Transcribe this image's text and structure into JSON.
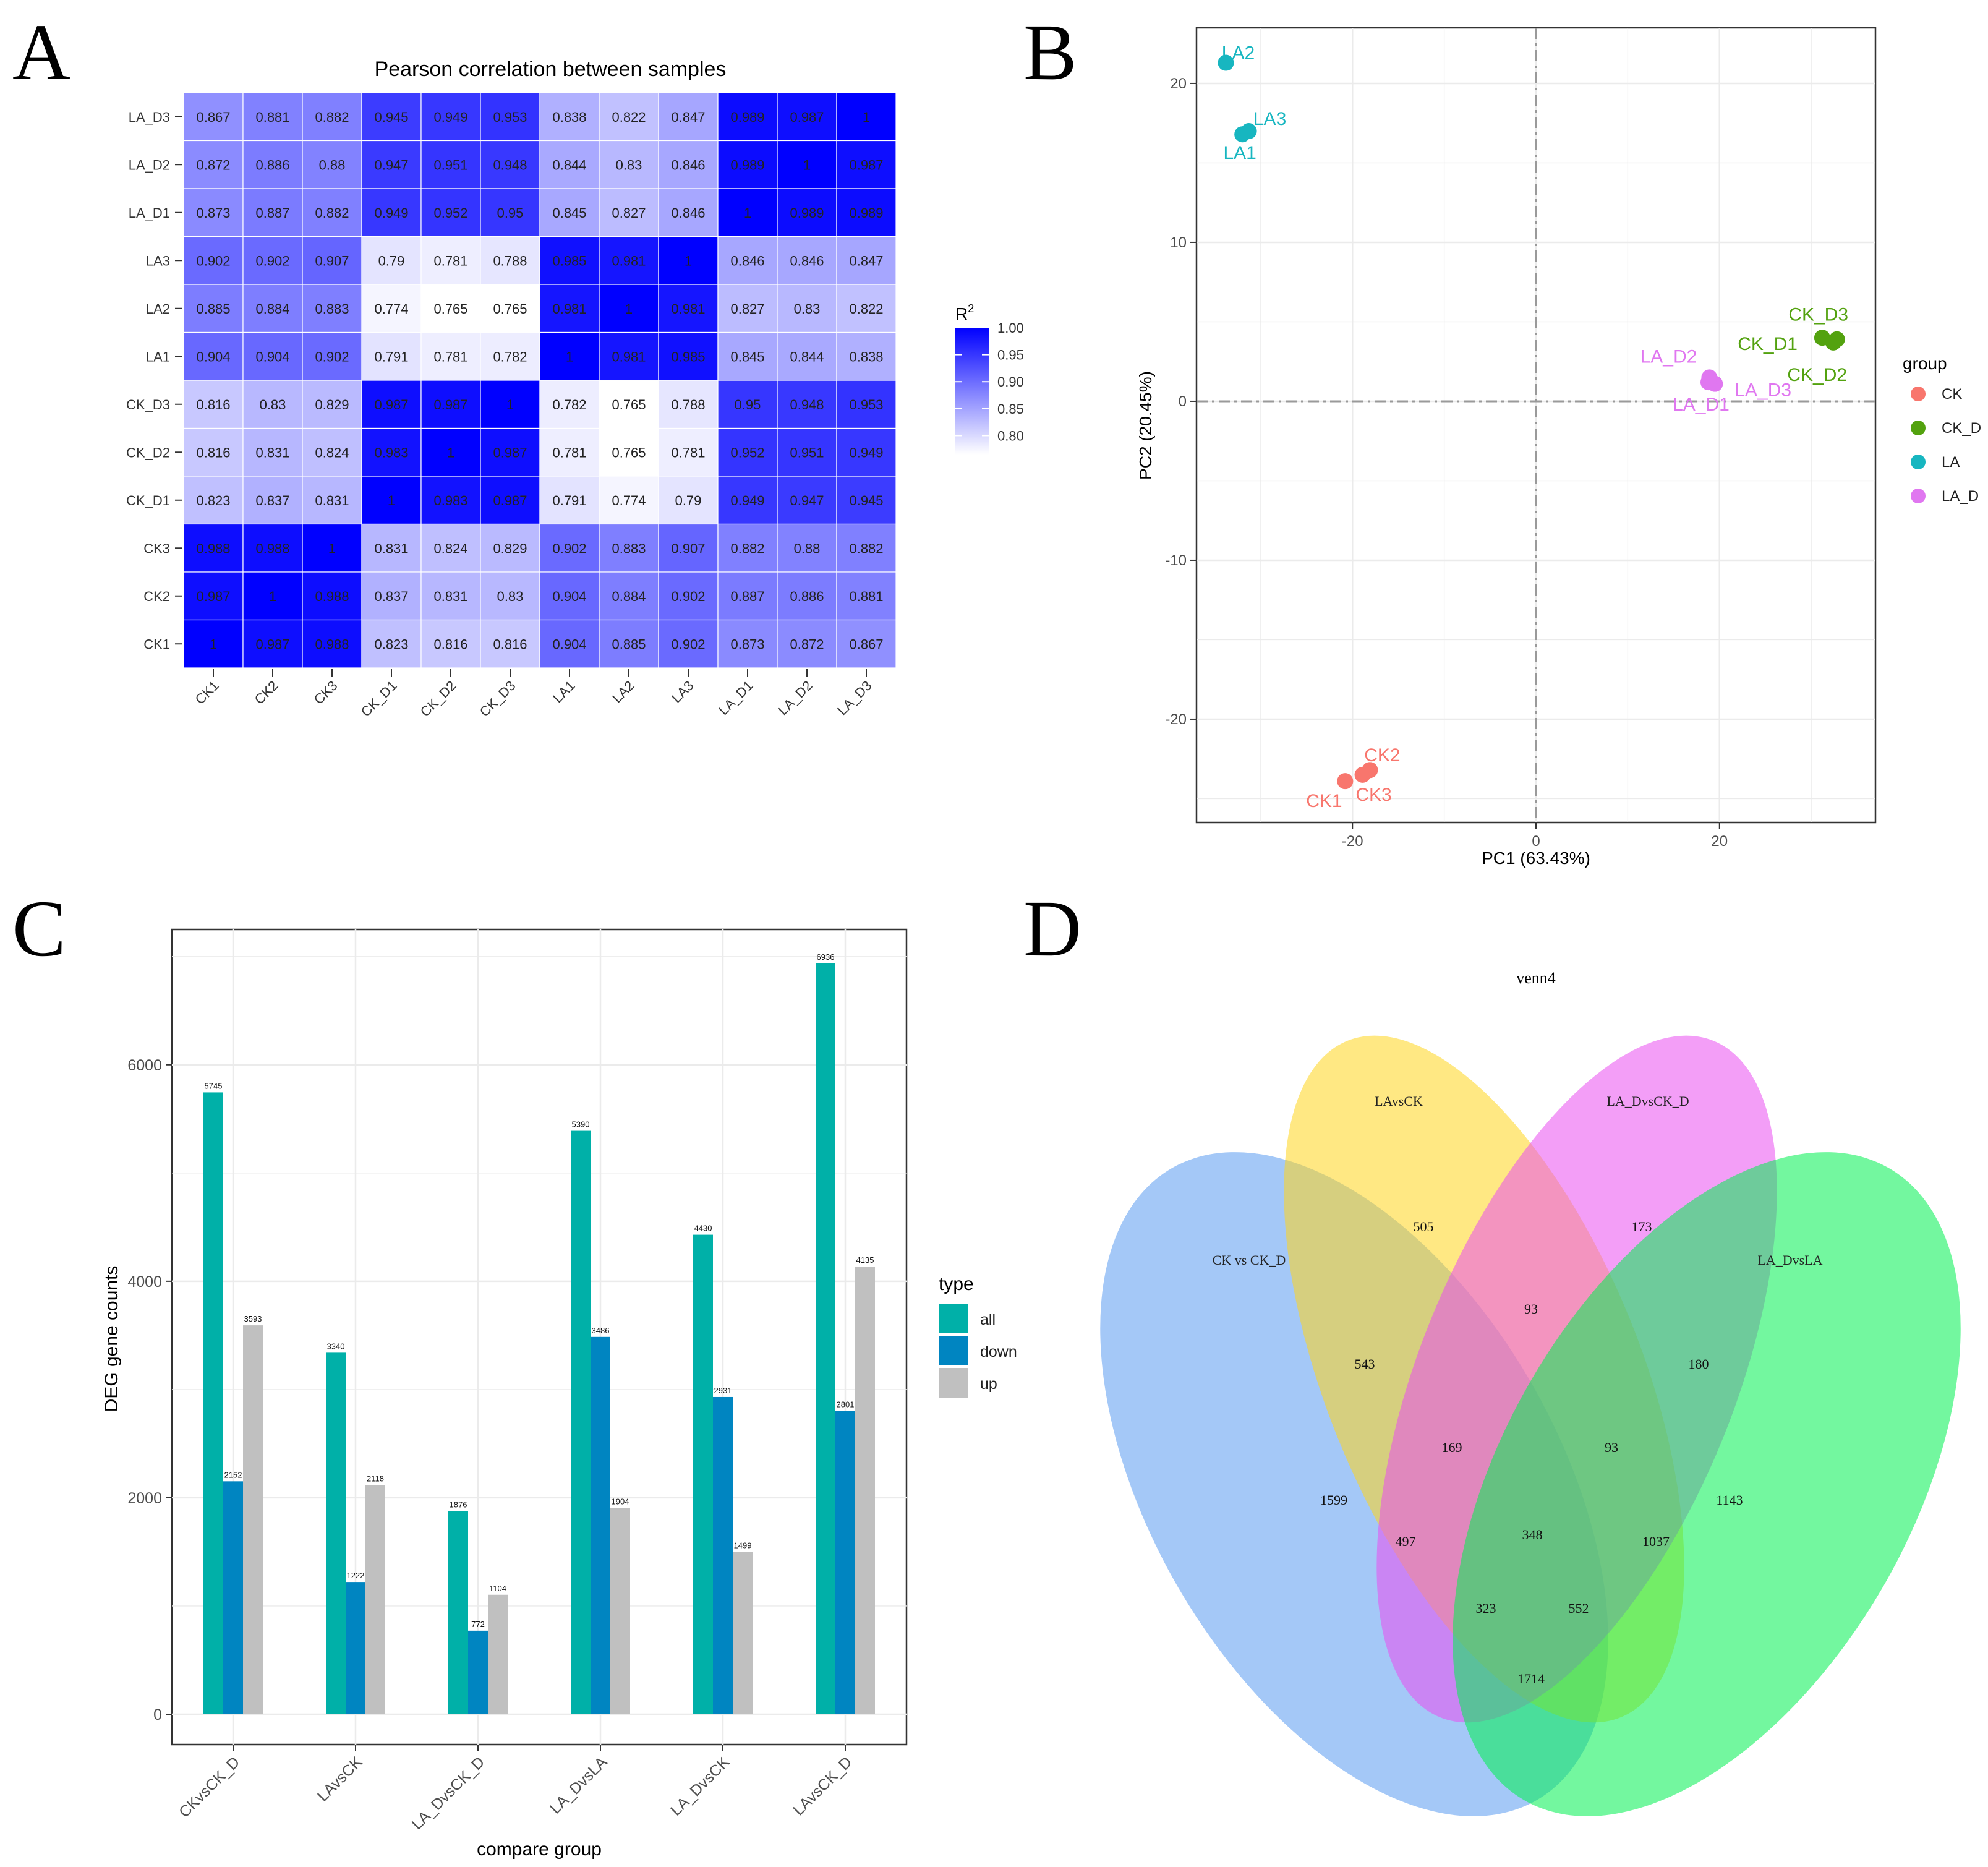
{
  "panel_letters": [
    "A",
    "B",
    "C",
    "D"
  ],
  "chart_data": [
    {
      "panel": "A",
      "type": "heatmap",
      "title": "Pearson correlation between samples",
      "x_categories": [
        "CK1",
        "CK2",
        "CK3",
        "CK_D1",
        "CK_D2",
        "CK_D3",
        "LA1",
        "LA2",
        "LA3",
        "LA_D1",
        "LA_D2",
        "LA_D3"
      ],
      "y_categories_top_to_bottom": [
        "LA_D3",
        "LA_D2",
        "LA_D1",
        "LA3",
        "LA2",
        "LA1",
        "CK_D3",
        "CK_D2",
        "CK_D1",
        "CK3",
        "CK2",
        "CK1"
      ],
      "values": [
        [
          "0.867",
          "0.881",
          "0.882",
          "0.945",
          "0.949",
          "0.953",
          "0.838",
          "0.822",
          "0.847",
          "0.989",
          "0.987",
          "1"
        ],
        [
          "0.872",
          "0.886",
          "0.88",
          "0.947",
          "0.951",
          "0.948",
          "0.844",
          "0.83",
          "0.846",
          "0.989",
          "1",
          "0.987"
        ],
        [
          "0.873",
          "0.887",
          "0.882",
          "0.949",
          "0.952",
          "0.95",
          "0.845",
          "0.827",
          "0.846",
          "1",
          "0.989",
          "0.989"
        ],
        [
          "0.902",
          "0.902",
          "0.907",
          "0.79",
          "0.781",
          "0.788",
          "0.985",
          "0.981",
          "1",
          "0.846",
          "0.846",
          "0.847"
        ],
        [
          "0.885",
          "0.884",
          "0.883",
          "0.774",
          "0.765",
          "0.765",
          "0.981",
          "1",
          "0.981",
          "0.827",
          "0.83",
          "0.822"
        ],
        [
          "0.904",
          "0.904",
          "0.902",
          "0.791",
          "0.781",
          "0.782",
          "1",
          "0.981",
          "0.985",
          "0.845",
          "0.844",
          "0.838"
        ],
        [
          "0.816",
          "0.83",
          "0.829",
          "0.987",
          "0.987",
          "1",
          "0.782",
          "0.765",
          "0.788",
          "0.95",
          "0.948",
          "0.953"
        ],
        [
          "0.816",
          "0.831",
          "0.824",
          "0.983",
          "1",
          "0.987",
          "0.781",
          "0.765",
          "0.781",
          "0.952",
          "0.951",
          "0.949"
        ],
        [
          "0.823",
          "0.837",
          "0.831",
          "1",
          "0.983",
          "0.987",
          "0.791",
          "0.774",
          "0.79",
          "0.949",
          "0.947",
          "0.945"
        ],
        [
          "0.988",
          "0.988",
          "1",
          "0.831",
          "0.824",
          "0.829",
          "0.902",
          "0.883",
          "0.907",
          "0.882",
          "0.88",
          "0.882"
        ],
        [
          "0.987",
          "1",
          "0.988",
          "0.837",
          "0.831",
          "0.83",
          "0.904",
          "0.884",
          "0.902",
          "0.887",
          "0.886",
          "0.881"
        ],
        [
          "1",
          "0.987",
          "0.988",
          "0.823",
          "0.816",
          "0.816",
          "0.904",
          "0.885",
          "0.902",
          "0.873",
          "0.872",
          "0.867"
        ]
      ],
      "legend": {
        "title_base": "R",
        "title_sup": "2",
        "ticks": [
          "1.00",
          "0.95",
          "0.90",
          "0.85",
          "0.80"
        ],
        "range": [
          0.765,
          1.0
        ],
        "color_low": "#ffffff",
        "color_high": "#0000ff"
      }
    },
    {
      "panel": "B",
      "type": "scatter",
      "xlabel": "PC1 (63.43%)",
      "ylabel": "PC2 (20.45%)",
      "xlim": [
        -37,
        37
      ],
      "ylim": [
        -26.5,
        23.5
      ],
      "xticks": [
        "-20",
        "0",
        "20"
      ],
      "yticks": [
        "20",
        "10",
        "0",
        "-10",
        "-20"
      ],
      "legend_title": "group",
      "groups": [
        {
          "name": "CK",
          "color": "#f8766d"
        },
        {
          "name": "CK_D",
          "color": "#53a20f"
        },
        {
          "name": "LA",
          "color": "#17b6c0"
        },
        {
          "name": "LA_D",
          "color": "#e077f0"
        }
      ],
      "points": [
        {
          "label": "LA2",
          "group": "LA",
          "x": -33.8,
          "y": 21.3
        },
        {
          "label": "LA3",
          "group": "LA",
          "x": -31.3,
          "y": 17.0
        },
        {
          "label": "LA1",
          "group": "LA",
          "x": -32.0,
          "y": 16.8
        },
        {
          "label": "CK_D3",
          "group": "CK_D",
          "x": 32.8,
          "y": 3.9
        },
        {
          "label": "CK_D1",
          "group": "CK_D",
          "x": 31.2,
          "y": 4.0
        },
        {
          "label": "CK_D2",
          "group": "CK_D",
          "x": 32.4,
          "y": 3.7
        },
        {
          "label": "LA_D2",
          "group": "LA_D",
          "x": 18.9,
          "y": 1.5
        },
        {
          "label": "LA_D3",
          "group": "LA_D",
          "x": 19.5,
          "y": 1.1
        },
        {
          "label": "LA_D1",
          "group": "LA_D",
          "x": 18.8,
          "y": 1.2
        },
        {
          "label": "CK2",
          "group": "CK",
          "x": -18.1,
          "y": -23.2
        },
        {
          "label": "CK3",
          "group": "CK",
          "x": -18.9,
          "y": -23.5
        },
        {
          "label": "CK1",
          "group": "CK",
          "x": -20.8,
          "y": -23.9
        }
      ]
    },
    {
      "panel": "C",
      "type": "bar",
      "xlabel": "compare group",
      "ylabel": "DEG gene counts",
      "ylim": [
        -280,
        7250
      ],
      "yticks": [
        "0",
        "2000",
        "4000",
        "6000"
      ],
      "categories": [
        "CKvsCK_D",
        "LAvsCK",
        "LA_DvsCK_D",
        "LA_DvsLA",
        "LA_DvsCK",
        "LAvsCK_D"
      ],
      "legend_title": "type",
      "series": [
        {
          "name": "all",
          "color": "#00b0a8",
          "values": [
            5745,
            3340,
            1876,
            5390,
            4430,
            6936
          ]
        },
        {
          "name": "down",
          "color": "#0085c1",
          "values": [
            2152,
            1222,
            772,
            3486,
            2931,
            2801
          ]
        },
        {
          "name": "up",
          "color": "#c0c0c0",
          "values": [
            3593,
            2118,
            1104,
            1904,
            1499,
            4135
          ]
        }
      ]
    },
    {
      "panel": "D",
      "type": "venn",
      "title": "venn4",
      "sets": [
        {
          "name": "CK vs CK_D",
          "color": "#5a9af0"
        },
        {
          "name": "LAvsCK",
          "color": "#ffd61e"
        },
        {
          "name": "LA_DvsCK_D",
          "color": "#e94ff0"
        },
        {
          "name": "LA_DvsLA",
          "color": "#00f050"
        }
      ],
      "regions": [
        {
          "sets": "LAvsCK only",
          "value": "505"
        },
        {
          "sets": "LA_DvsCK_D only",
          "value": "173"
        },
        {
          "sets": "LAvsCK & LA_DvsCK_D",
          "value": "93"
        },
        {
          "sets": "CK vs CK_D & LAvsCK",
          "value": "543"
        },
        {
          "sets": "LA_DvsCK_D & LA_DvsLA",
          "value": "180"
        },
        {
          "sets": "CK vs CK_D & LAvsCK & LA_DvsCK_D",
          "value": "169"
        },
        {
          "sets": "LAvsCK & LA_DvsCK_D & LA_DvsLA",
          "value": "93"
        },
        {
          "sets": "CK vs CK_D only",
          "value": "1599"
        },
        {
          "sets": "LA_DvsLA only",
          "value": "1143"
        },
        {
          "sets": "CK vs CK_D & LA_DvsCK_D",
          "value": "497"
        },
        {
          "sets": "all four",
          "value": "348"
        },
        {
          "sets": "LAvsCK & LA_DvsLA",
          "value": "1037"
        },
        {
          "sets": "CK vs CK_D & LA_DvsCK_D & LA_DvsLA",
          "value": "323"
        },
        {
          "sets": "CK vs CK_D & LAvsCK & LA_DvsLA",
          "value": "552"
        },
        {
          "sets": "CK vs CK_D & LA_DvsLA",
          "value": "1714"
        }
      ]
    }
  ]
}
